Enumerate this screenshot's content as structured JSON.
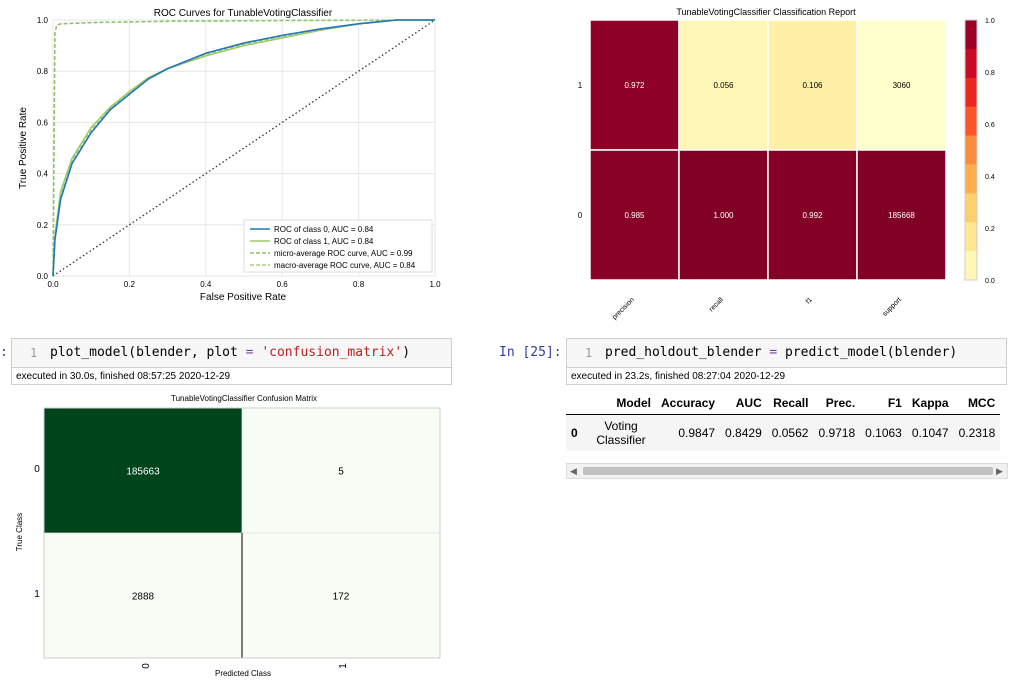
{
  "roc": {
    "title": "ROC Curves for TunableVotingClassifier",
    "xlabel": "False Positive Rate",
    "ylabel": "True Positive Rate",
    "xticks": [
      "0.0",
      "0.2",
      "0.4",
      "0.6",
      "0.8",
      "1.0"
    ],
    "yticks": [
      "0.0",
      "0.2",
      "0.4",
      "0.6",
      "0.8",
      "1.0"
    ],
    "legend": [
      "ROC of class 0, AUC = 0.84",
      "ROC of class 1, AUC = 0.84",
      "micro-average ROC curve, AUC = 0.99",
      "macro-average ROC curve, AUC = 0.84"
    ],
    "colors": {
      "class0": "#1f77b4",
      "class1": "#a0c96a",
      "micro": "#8fc26a",
      "macro": "#a8cf82"
    }
  },
  "report": {
    "title": "TunableVotingClassifier Classification Report",
    "rows": [
      "1",
      "0"
    ],
    "cols": [
      "precision",
      "recall",
      "f1",
      "support"
    ],
    "values": [
      [
        "0.972",
        "0.056",
        "0.106",
        "3060"
      ],
      [
        "0.985",
        "1.000",
        "0.992",
        "185668"
      ]
    ],
    "cbar_ticks": [
      "1.0",
      "0.8",
      "0.6",
      "0.4",
      "0.2",
      "0.0"
    ],
    "colors": {
      "high": "#800026",
      "low": "#ffffcc"
    }
  },
  "cell1": {
    "line": "1",
    "code": "plot_model(blender, plot = 'confusion_matrix')",
    "exec": "executed in 30.0s, finished 08:57:25 2020-12-29",
    "prompt_fragment": ":"
  },
  "cell2": {
    "prompt": "In [25]:",
    "line": "1",
    "code": "pred_holdout_blender = predict_model(blender)",
    "exec": "executed in 23.2s, finished 08:27:04 2020-12-29"
  },
  "confusion": {
    "title": "TunableVotingClassifier Confusion Matrix",
    "xlabel": "Predicted Class",
    "ylabel": "True Class",
    "xticks": [
      "0",
      "1"
    ],
    "yticks": [
      "0",
      "1"
    ],
    "values": [
      [
        "185663",
        "5"
      ],
      [
        "2888",
        "172"
      ]
    ],
    "colors": {
      "dark": "#00441b",
      "light": "#f7fcf5"
    }
  },
  "table": {
    "headers": [
      "",
      "Model",
      "Accuracy",
      "AUC",
      "Recall",
      "Prec.",
      "F1",
      "Kappa",
      "MCC"
    ],
    "rows": [
      [
        "0",
        "Voting Classifier",
        "0.9847",
        "0.8429",
        "0.0562",
        "0.9718",
        "0.1063",
        "0.1047",
        "0.2318"
      ]
    ]
  },
  "chart_data": [
    {
      "type": "line",
      "title": "ROC Curves for TunableVotingClassifier",
      "xlabel": "False Positive Rate",
      "ylabel": "True Positive Rate",
      "xlim": [
        0,
        1
      ],
      "ylim": [
        0,
        1
      ],
      "series": [
        {
          "name": "ROC of class 0, AUC = 0.84",
          "x": [
            0,
            0.005,
            0.02,
            0.05,
            0.1,
            0.15,
            0.2,
            0.25,
            0.3,
            0.4,
            0.5,
            0.6,
            0.7,
            0.8,
            0.9,
            1.0
          ],
          "y": [
            0,
            0.14,
            0.3,
            0.44,
            0.56,
            0.65,
            0.71,
            0.77,
            0.81,
            0.87,
            0.91,
            0.94,
            0.965,
            0.985,
            1.0,
            1.0
          ]
        },
        {
          "name": "ROC of class 1, AUC = 0.84",
          "x": [
            0,
            0.005,
            0.02,
            0.05,
            0.1,
            0.15,
            0.2,
            0.25,
            0.3,
            0.4,
            0.5,
            0.6,
            0.7,
            0.8,
            0.9,
            1.0
          ],
          "y": [
            0,
            0.16,
            0.33,
            0.46,
            0.58,
            0.66,
            0.72,
            0.775,
            0.81,
            0.86,
            0.9,
            0.93,
            0.96,
            0.985,
            1.0,
            1.0
          ]
        },
        {
          "name": "micro-average ROC curve, AUC = 0.99",
          "x": [
            0,
            0.005,
            0.01,
            0.02,
            0.1,
            0.3,
            0.6,
            1.0
          ],
          "y": [
            0,
            0.95,
            0.98,
            0.985,
            0.99,
            0.995,
            0.998,
            1.0
          ]
        },
        {
          "name": "macro-average ROC curve, AUC = 0.84",
          "x": [
            0,
            0.005,
            0.02,
            0.05,
            0.1,
            0.15,
            0.2,
            0.25,
            0.3,
            0.4,
            0.5,
            0.6,
            0.7,
            0.8,
            0.9,
            1.0
          ],
          "y": [
            0,
            0.15,
            0.31,
            0.45,
            0.57,
            0.655,
            0.715,
            0.77,
            0.81,
            0.865,
            0.905,
            0.935,
            0.962,
            0.985,
            1.0,
            1.0
          ]
        }
      ]
    },
    {
      "type": "heatmap",
      "title": "TunableVotingClassifier Classification Report",
      "rows": [
        "1",
        "0"
      ],
      "columns": [
        "precision",
        "recall",
        "f1",
        "support"
      ],
      "values": [
        [
          0.972,
          0.056,
          0.106,
          3060
        ],
        [
          0.985,
          1.0,
          0.992,
          185668
        ]
      ]
    },
    {
      "type": "heatmap",
      "title": "TunableVotingClassifier Confusion Matrix",
      "xlabel": "Predicted Class",
      "ylabel": "True Class",
      "rows": [
        "0",
        "1"
      ],
      "columns": [
        "0",
        "1"
      ],
      "values": [
        [
          185663,
          5
        ],
        [
          2888,
          172
        ]
      ]
    }
  ]
}
